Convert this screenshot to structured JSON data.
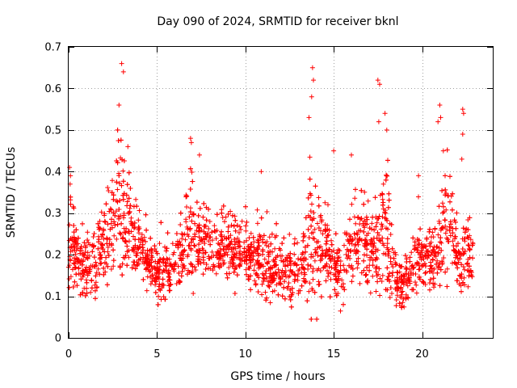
{
  "chart_data": {
    "type": "scatter",
    "title": "Day 090 of 2024, SRMTID for receiver bknl",
    "xlabel": "GPS time / hours",
    "ylabel": "SRMTID / TECUs",
    "xlim": [
      0,
      24
    ],
    "ylim": [
      0,
      0.7
    ],
    "x_ticks": [
      0,
      5,
      10,
      15,
      20
    ],
    "x_tick_labels": [
      "0",
      "5",
      "10",
      "15",
      "20"
    ],
    "y_ticks": [
      0,
      0.1,
      0.2,
      0.3,
      0.4,
      0.5,
      0.6,
      0.7
    ],
    "y_tick_labels": [
      "0",
      "0.1",
      "0.2",
      "0.3",
      "0.4",
      "0.5",
      "0.6",
      "0.7"
    ],
    "grid": true,
    "marker": "+",
    "series": [
      {
        "name": "SRMTID",
        "color": "#ff0000",
        "marker": "+",
        "count": 3000,
        "profile_hours": [
          0,
          0.1,
          0.5,
          1.0,
          1.5,
          2.0,
          2.5,
          2.8,
          3.0,
          3.2,
          3.5,
          4.0,
          4.5,
          5.0,
          5.5,
          6.0,
          6.5,
          6.9,
          7.3,
          8.0,
          9.0,
          10.0,
          11.0,
          11.5,
          12.0,
          12.5,
          13.0,
          13.5,
          13.8,
          14.2,
          15.0,
          15.5,
          16.0,
          16.5,
          17.0,
          17.5,
          17.9,
          18.3,
          18.8,
          19.5,
          20.0,
          20.5,
          21.0,
          21.3,
          21.7,
          22.2,
          22.5,
          22.9
        ],
        "profile_median": [
          0.17,
          0.25,
          0.18,
          0.16,
          0.19,
          0.22,
          0.28,
          0.32,
          0.3,
          0.28,
          0.27,
          0.22,
          0.18,
          0.15,
          0.16,
          0.18,
          0.22,
          0.26,
          0.22,
          0.23,
          0.22,
          0.2,
          0.18,
          0.16,
          0.17,
          0.16,
          0.15,
          0.2,
          0.25,
          0.22,
          0.18,
          0.17,
          0.22,
          0.25,
          0.22,
          0.2,
          0.28,
          0.15,
          0.12,
          0.16,
          0.2,
          0.18,
          0.2,
          0.3,
          0.25,
          0.16,
          0.22,
          0.18
        ],
        "profile_spread": [
          0.05,
          0.1,
          0.06,
          0.06,
          0.07,
          0.08,
          0.14,
          0.16,
          0.18,
          0.14,
          0.09,
          0.07,
          0.05,
          0.05,
          0.06,
          0.06,
          0.08,
          0.12,
          0.07,
          0.07,
          0.06,
          0.06,
          0.07,
          0.06,
          0.06,
          0.06,
          0.06,
          0.1,
          0.18,
          0.1,
          0.07,
          0.07,
          0.09,
          0.1,
          0.09,
          0.09,
          0.16,
          0.07,
          0.05,
          0.06,
          0.06,
          0.07,
          0.08,
          0.14,
          0.09,
          0.06,
          0.09,
          0.07
        ]
      }
    ],
    "peaks": [
      {
        "x": 3.0,
        "y": 0.66
      },
      {
        "x": 3.1,
        "y": 0.64
      },
      {
        "x": 2.85,
        "y": 0.56
      },
      {
        "x": 3.35,
        "y": 0.46
      },
      {
        "x": 6.9,
        "y": 0.48
      },
      {
        "x": 7.4,
        "y": 0.44
      },
      {
        "x": 10.9,
        "y": 0.4
      },
      {
        "x": 13.6,
        "y": 0.53
      },
      {
        "x": 13.8,
        "y": 0.65
      },
      {
        "x": 13.85,
        "y": 0.62
      },
      {
        "x": 13.75,
        "y": 0.58
      },
      {
        "x": 15.0,
        "y": 0.45
      },
      {
        "x": 16.0,
        "y": 0.44
      },
      {
        "x": 17.5,
        "y": 0.62
      },
      {
        "x": 17.6,
        "y": 0.61
      },
      {
        "x": 17.55,
        "y": 0.52
      },
      {
        "x": 17.9,
        "y": 0.54
      },
      {
        "x": 18.0,
        "y": 0.5
      },
      {
        "x": 19.8,
        "y": 0.39
      },
      {
        "x": 20.9,
        "y": 0.52
      },
      {
        "x": 21.0,
        "y": 0.56
      },
      {
        "x": 21.05,
        "y": 0.53
      },
      {
        "x": 21.2,
        "y": 0.45
      },
      {
        "x": 22.3,
        "y": 0.55
      },
      {
        "x": 22.35,
        "y": 0.54
      },
      {
        "x": 22.3,
        "y": 0.49
      },
      {
        "x": 22.25,
        "y": 0.43
      },
      {
        "x": 0.05,
        "y": 0.41
      },
      {
        "x": 0.1,
        "y": 0.39
      },
      {
        "x": 0.08,
        "y": 0.37
      }
    ],
    "noise_seed": 90
  }
}
